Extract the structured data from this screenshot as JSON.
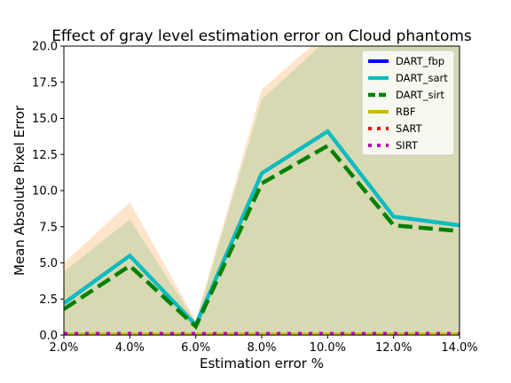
{
  "chart_data": {
    "type": "line",
    "title": "Effect of gray level estimation error on Cloud phantoms",
    "xlabel": "Estimation error %",
    "ylabel": "Mean Absolute Pixel Error",
    "x": [
      2,
      4,
      6,
      8,
      10,
      12,
      14
    ],
    "xticks": [
      "2.0%",
      "4.0%",
      "6.0%",
      "8.0%",
      "10.0%",
      "12.0%",
      "14.0%"
    ],
    "xlim": [
      2,
      14
    ],
    "ylim": [
      0,
      20
    ],
    "yticks": [
      0,
      2.5,
      5,
      7.5,
      10,
      12.5,
      15,
      17.5,
      20
    ],
    "ytick_labels": [
      "0.0",
      "2.5",
      "5.0",
      "7.5",
      "10.0",
      "12.5",
      "15.0",
      "17.5",
      "20.0"
    ],
    "grid": false,
    "legend_position": "top-right",
    "series": [
      {
        "name": "DART_fbp",
        "color": "#0000ff",
        "style": "solid",
        "values": [
          2.2,
          5.5,
          0.7,
          11.2,
          14.1,
          8.2,
          7.6
        ]
      },
      {
        "name": "DART_sart",
        "color": "#00bfbf",
        "style": "solid",
        "values": [
          2.2,
          5.5,
          0.7,
          11.2,
          14.1,
          8.2,
          7.6
        ]
      },
      {
        "name": "DART_sirt",
        "color": "#008000",
        "style": "dashed",
        "values": [
          1.8,
          4.8,
          0.6,
          10.5,
          13.1,
          7.6,
          7.2
        ]
      },
      {
        "name": "RBF",
        "color": "#bfbf00",
        "style": "solid",
        "values": [
          0.05,
          0.05,
          0.05,
          0.05,
          0.05,
          0.05,
          0.05
        ]
      },
      {
        "name": "SART",
        "color": "#ff0000",
        "style": "dotted",
        "values": [
          0.1,
          0.1,
          0.1,
          0.1,
          0.1,
          0.1,
          0.1
        ]
      },
      {
        "name": "SIRT",
        "color": "#bf00bf",
        "style": "dotted",
        "values": [
          0.1,
          0.1,
          0.1,
          0.1,
          0.1,
          0.1,
          0.1
        ]
      }
    ],
    "bands": [
      {
        "color": "#ffe4cc",
        "lower": [
          0,
          0,
          0,
          0,
          0,
          0,
          0
        ],
        "upper": [
          5.0,
          9.2,
          1.0,
          17.0,
          21.0,
          21.0,
          21.0
        ]
      },
      {
        "color": "#d6d9b1",
        "lower": [
          0,
          0,
          0,
          0,
          0,
          0,
          0
        ],
        "upper": [
          4.4,
          8.0,
          0.9,
          16.3,
          20.5,
          20.5,
          20.5
        ]
      }
    ]
  }
}
